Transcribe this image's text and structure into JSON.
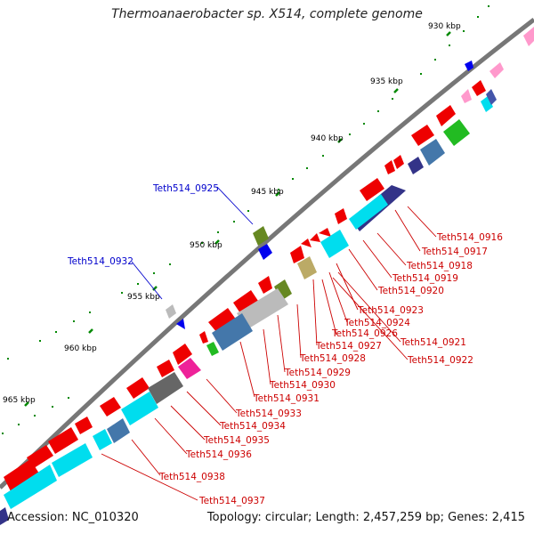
{
  "title": "Thermoanaerobacter sp. X514, complete genome",
  "accession": "Accession: NC_010320",
  "topology": "Topology: circular; Length: 2,457,259 bp; Genes: 2,415",
  "colors": {
    "backbone": "#777777",
    "cds_red": "#ee0000",
    "label_red": "#cc0000",
    "label_blue": "#0000cc",
    "tick_green": "#008800",
    "cyan": "#00ddee",
    "steel": "#4477aa",
    "navy": "#333388",
    "green": "#22bb22",
    "olive": "#668822",
    "khaki": "#bbaa66",
    "gray": "#888888",
    "silver": "#bbbbbb",
    "magenta": "#ee2299",
    "pink": "#ff99cc",
    "blue": "#0000ee"
  },
  "kbp_labels": [
    "930 kbp",
    "935 kbp",
    "940 kbp",
    "945 kbp",
    "950 kbp",
    "955 kbp",
    "960 kbp",
    "965 kbp"
  ],
  "gene_labels_red": [
    "Teth514_0916",
    "Teth514_0917",
    "Teth514_0918",
    "Teth514_0919",
    "Teth514_0920",
    "Teth514_0923",
    "Teth514_0924",
    "Teth514_0926",
    "Teth514_0921",
    "Teth514_0927",
    "Teth514_0922",
    "Teth514_0928",
    "Teth514_0929",
    "Teth514_0930",
    "Teth514_0931",
    "Teth514_0933",
    "Teth514_0934",
    "Teth514_0935",
    "Teth514_0936",
    "Teth514_0938",
    "Teth514_0937"
  ],
  "gene_labels_blue": [
    "Teth514_0925",
    "Teth514_0932"
  ]
}
